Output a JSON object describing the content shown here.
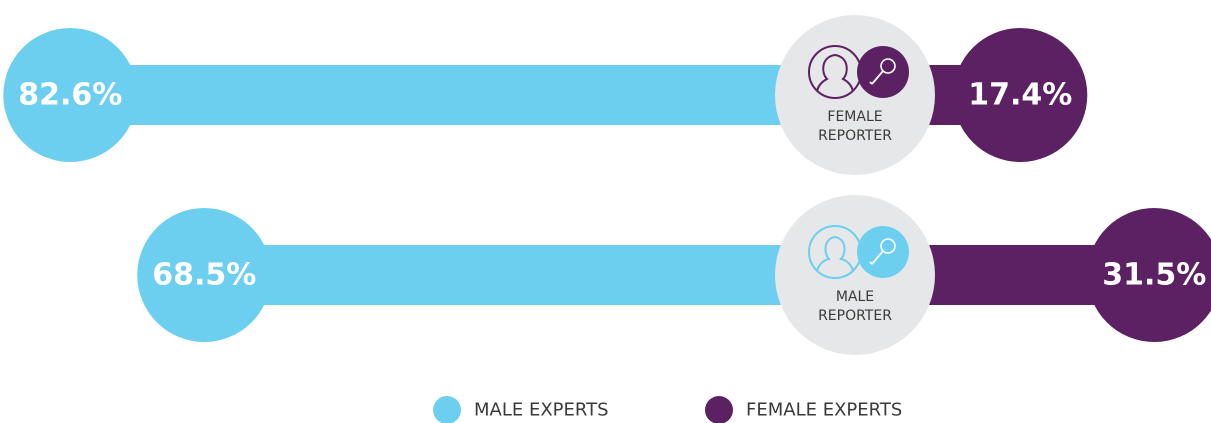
{
  "chart_data": {
    "type": "diverging-bar",
    "categories": [
      "FEMALE REPORTER",
      "MALE REPORTER"
    ],
    "series": [
      {
        "name": "MALE EXPERTS",
        "color": "#6dcff0",
        "values": [
          82.6,
          68.5
        ],
        "value_labels": [
          "82.6%",
          "68.5%"
        ]
      },
      {
        "name": "FEMALE EXPERTS",
        "color": "#5c2162",
        "values": [
          17.4,
          31.5
        ],
        "value_labels": [
          "17.4%",
          "31.5%"
        ]
      }
    ]
  }
}
